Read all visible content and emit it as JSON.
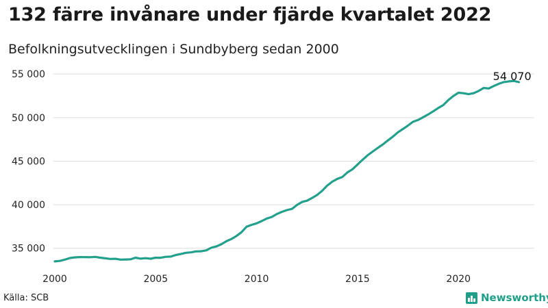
{
  "header": {
    "title": "132 färre invånare under fjärde kvartalet 2022",
    "subtitle": "Befolkningsutvecklingen i Sundbyberg sedan 2000"
  },
  "footer": {
    "source": "Källa: SCB",
    "brand": "Newsworthy",
    "brand_icon": "bar-chart-icon"
  },
  "colors": {
    "line": "#23a08c",
    "grid": "#dddddd",
    "brand": "#1f9e8a"
  },
  "chart_data": {
    "type": "line",
    "title": "132 färre invånare under fjärde kvartalet 2022",
    "subtitle": "Befolkningsutvecklingen i Sundbyberg sedan 2000",
    "xlabel": "",
    "ylabel": "",
    "x_ticks": [
      "2000",
      "2005",
      "2010",
      "2015",
      "2020"
    ],
    "y_ticks": [
      {
        "value": 35000,
        "label": "35 000"
      },
      {
        "value": 40000,
        "label": "40 000"
      },
      {
        "value": 45000,
        "label": "45 000"
      },
      {
        "value": 50000,
        "label": "50 000"
      },
      {
        "value": 55000,
        "label": "55 000"
      }
    ],
    "xlim": [
      2000,
      2023.25
    ],
    "ylim": [
      32700,
      55800
    ],
    "grid": "horizontal",
    "end_label": "54 070",
    "series": [
      {
        "x": [
          2000.0,
          2000.25,
          2000.5,
          2000.75,
          2001.0,
          2001.25,
          2001.5,
          2001.75,
          2002.0,
          2002.25,
          2002.5,
          2002.75,
          2003.0,
          2003.25,
          2003.5,
          2003.75,
          2004.0,
          2004.25,
          2004.5,
          2004.75,
          2005.0,
          2005.25,
          2005.5,
          2005.75,
          2006.0,
          2006.25,
          2006.5,
          2006.75,
          2007.0,
          2007.25,
          2007.5,
          2007.75,
          2008.0,
          2008.25,
          2008.5,
          2008.75,
          2009.0,
          2009.25,
          2009.5,
          2009.75,
          2010.0,
          2010.25,
          2010.5,
          2010.75,
          2011.0,
          2011.25,
          2011.5,
          2011.75,
          2012.0,
          2012.25,
          2012.5,
          2012.75,
          2013.0,
          2013.25,
          2013.5,
          2013.75,
          2014.0,
          2014.25,
          2014.5,
          2014.75,
          2015.0,
          2015.25,
          2015.5,
          2015.75,
          2016.0,
          2016.25,
          2016.5,
          2016.75,
          2017.0,
          2017.25,
          2017.5,
          2017.75,
          2018.0,
          2018.25,
          2018.5,
          2018.75,
          2019.0,
          2019.25,
          2019.5,
          2019.75,
          2020.0,
          2020.25,
          2020.5,
          2020.75,
          2021.0,
          2021.25,
          2021.5,
          2021.75,
          2022.0,
          2022.25,
          2022.5,
          2022.75,
          2023.0
        ],
        "values": [
          33490,
          33550,
          33700,
          33880,
          33960,
          33990,
          33980,
          33970,
          34010,
          33920,
          33850,
          33780,
          33790,
          33700,
          33710,
          33730,
          33920,
          33810,
          33860,
          33800,
          33920,
          33910,
          34020,
          34040,
          34230,
          34340,
          34480,
          34530,
          34640,
          34660,
          34760,
          35060,
          35210,
          35460,
          35800,
          36060,
          36410,
          36840,
          37470,
          37690,
          37860,
          38120,
          38410,
          38590,
          38930,
          39180,
          39380,
          39520,
          39970,
          40310,
          40460,
          40780,
          41120,
          41600,
          42200,
          42650,
          42970,
          43180,
          43710,
          44070,
          44610,
          45160,
          45670,
          46100,
          46510,
          46910,
          47370,
          47810,
          48310,
          48690,
          49090,
          49520,
          49730,
          50040,
          50360,
          50720,
          51100,
          51440,
          52020,
          52480,
          52850,
          52800,
          52690,
          52800,
          53060,
          53400,
          53340,
          53620,
          53880,
          54080,
          54160,
          54202,
          54070
        ]
      }
    ]
  }
}
